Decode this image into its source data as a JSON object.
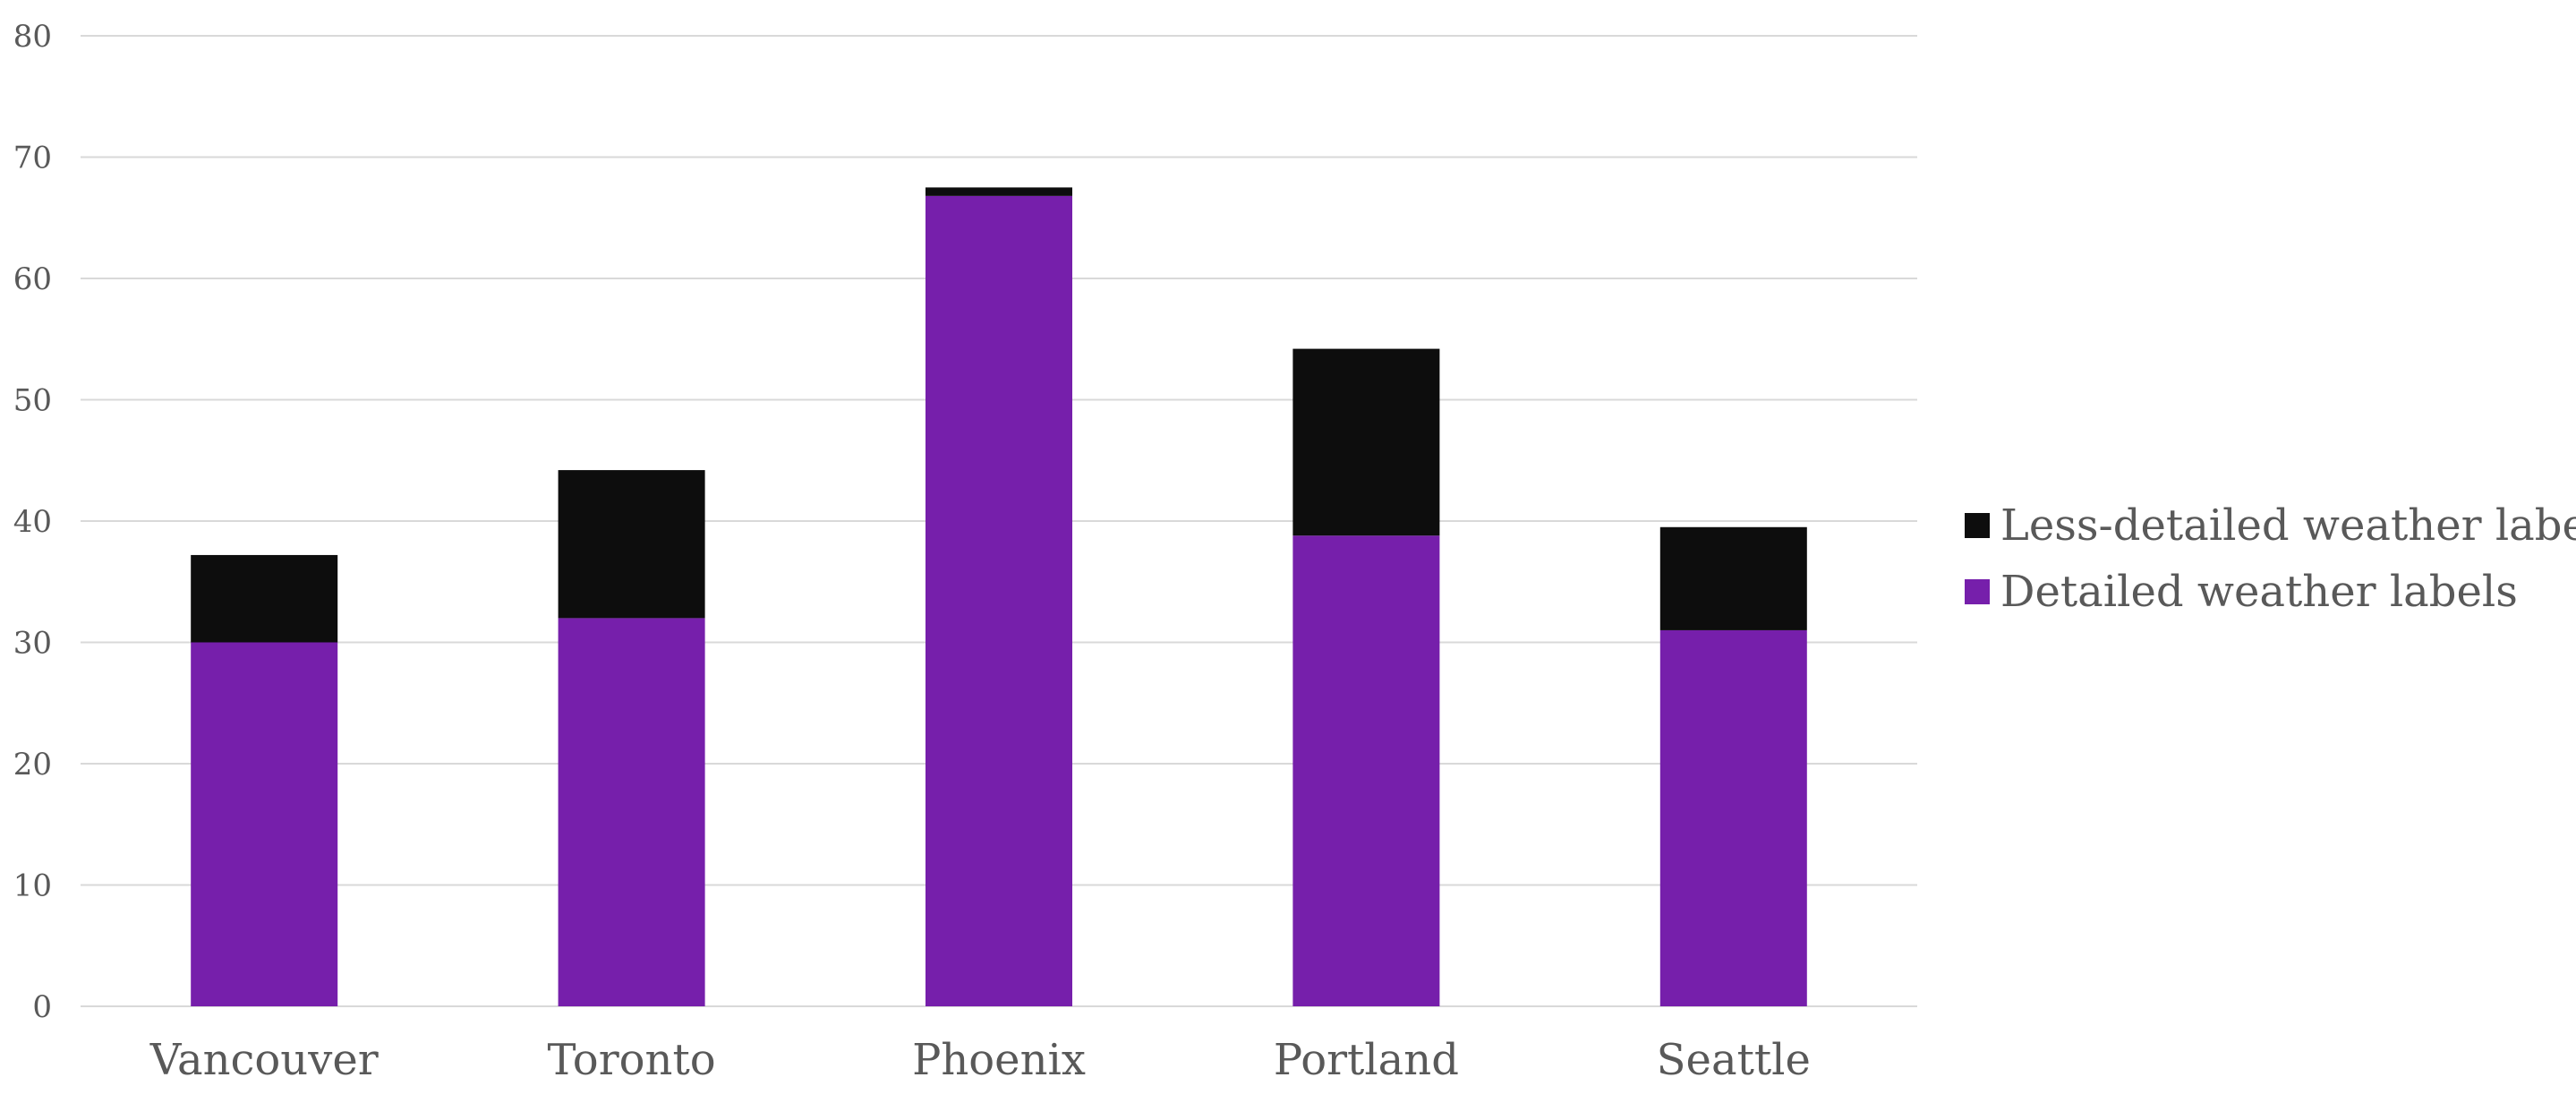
{
  "chart_data": {
    "type": "bar",
    "stacked": true,
    "categories": [
      "Vancouver",
      "Toronto",
      "Phoenix",
      "Portland",
      "Seattle"
    ],
    "series": [
      {
        "name": "Detailed weather labels",
        "color": "#761FAB",
        "values": [
          30,
          32,
          66.8,
          38.8,
          31
        ]
      },
      {
        "name": "Less-detailed weather labels",
        "color": "#0D0D0D",
        "values": [
          7.2,
          12.2,
          0.7,
          15.4,
          8.5
        ]
      }
    ],
    "ylim": [
      0,
      80
    ],
    "yticks": [
      0,
      10,
      20,
      30,
      40,
      50,
      60,
      70,
      80
    ],
    "grid": true,
    "legend_position": "right",
    "legend_order": [
      "Less-detailed weather labels",
      "Detailed weather labels"
    ],
    "title": "",
    "xlabel": "",
    "ylabel": ""
  }
}
